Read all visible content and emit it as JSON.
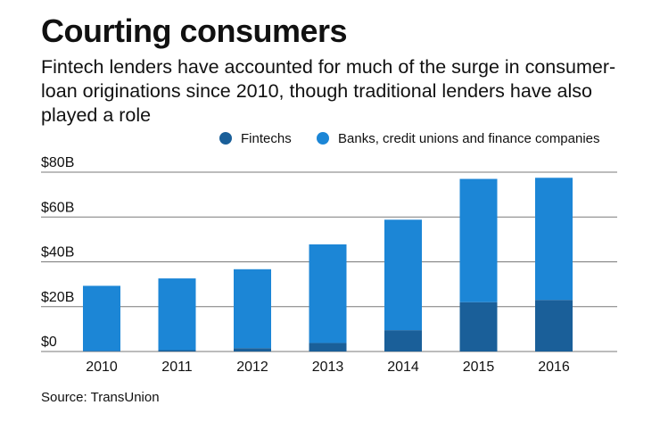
{
  "title": "Courting consumers",
  "subtitle": "Fintech lenders have accounted for much of the surge in consumer-loan originations since 2010, though traditional lenders have also played a role",
  "source": "Source: TransUnion",
  "colors": {
    "fintechs": "#1a5f99",
    "banks": "#1c86d6",
    "gridline": "#7a7a7a",
    "text": "#111111"
  },
  "chart_data": {
    "type": "bar",
    "stacked": true,
    "categories": [
      "2010",
      "2011",
      "2012",
      "2013",
      "2014",
      "2015",
      "2016"
    ],
    "series": [
      {
        "name": "Fintechs",
        "values": [
          0.3,
          0.6,
          1.5,
          3.8,
          9.5,
          22,
          23
        ]
      },
      {
        "name": "Banks, credit unions and finance companies",
        "values": [
          29,
          32,
          35.2,
          44,
          49.3,
          55,
          54.5
        ]
      }
    ],
    "yticks": [
      "$0",
      "$20B",
      "$40B",
      "$60B",
      "$80B"
    ],
    "ytick_values": [
      0,
      20,
      40,
      60,
      80
    ],
    "ylim": [
      0,
      80
    ],
    "grid": true,
    "legend": "top-right"
  }
}
